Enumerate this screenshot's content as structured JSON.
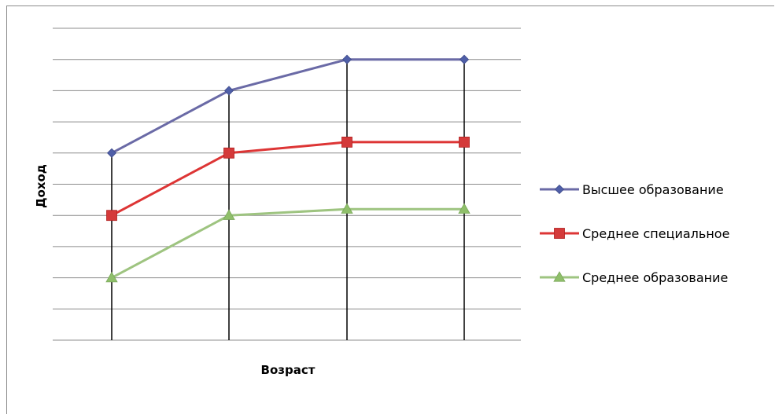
{
  "chart_data": {
    "type": "line",
    "xlabel": "Возраст",
    "ylabel": "Доход",
    "x": [
      "",
      "",
      "",
      ""
    ],
    "ylim": [
      0,
      10
    ],
    "grid": true,
    "legend_position": "right",
    "series": [
      {
        "name": "Высшее образование",
        "values": [
          6,
          8,
          9,
          9
        ],
        "color": "#4f5fa8",
        "line_color": "#6a6aa6",
        "marker": "diamond"
      },
      {
        "name": "Среднее специальное",
        "values": [
          4,
          6,
          6.35,
          6.35
        ],
        "color": "#d43a3a",
        "line_color": "#dd3535",
        "marker": "square"
      },
      {
        "name": "Среднее образование",
        "values": [
          2,
          4,
          4.2,
          4.2
        ],
        "color": "#8fbf6a",
        "line_color": "#9ec480",
        "marker": "triangle"
      }
    ]
  }
}
